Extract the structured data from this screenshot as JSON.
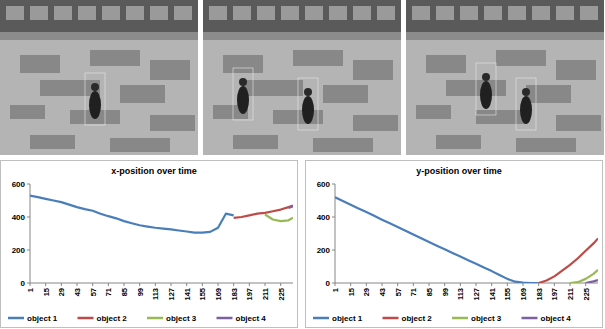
{
  "chart_data": [
    {
      "type": "line",
      "title": "x-position over time",
      "x": [
        1,
        8,
        15,
        22,
        29,
        36,
        43,
        50,
        57,
        64,
        71,
        78,
        85,
        92,
        99,
        106,
        113,
        120,
        127,
        134,
        141,
        148,
        155,
        162,
        169,
        176,
        183,
        190,
        197,
        204,
        211,
        218,
        225,
        232,
        236
      ],
      "xlim": [
        1,
        236
      ],
      "xticks": [
        1,
        15,
        29,
        43,
        57,
        71,
        85,
        99,
        113,
        127,
        141,
        155,
        169,
        183,
        197,
        211,
        225
      ],
      "ylim": [
        0,
        600
      ],
      "yticks": [
        0,
        200,
        400,
        600
      ],
      "grid": false,
      "legend": "bottom",
      "series": [
        {
          "name": "object 1",
          "color": "#4a7ebb",
          "values": [
            530,
            520,
            510,
            500,
            490,
            475,
            460,
            448,
            438,
            420,
            405,
            392,
            375,
            362,
            350,
            342,
            335,
            330,
            325,
            318,
            312,
            305,
            305,
            310,
            335,
            420,
            410,
            null,
            null,
            null,
            null,
            null,
            null,
            null,
            null
          ]
        },
        {
          "name": "object 2",
          "color": "#be4b48",
          "values": [
            null,
            null,
            null,
            null,
            null,
            null,
            null,
            null,
            null,
            null,
            null,
            null,
            null,
            null,
            null,
            null,
            null,
            null,
            null,
            null,
            null,
            null,
            null,
            null,
            null,
            null,
            395,
            400,
            410,
            420,
            425,
            435,
            445,
            460,
            470
          ]
        },
        {
          "name": "object 3",
          "color": "#98b954",
          "values": [
            null,
            null,
            null,
            null,
            null,
            null,
            null,
            null,
            null,
            null,
            null,
            null,
            null,
            null,
            null,
            null,
            null,
            null,
            null,
            null,
            null,
            null,
            null,
            null,
            null,
            null,
            null,
            null,
            null,
            null,
            415,
            385,
            375,
            380,
            395
          ]
        },
        {
          "name": "object 4",
          "color": "#7d60a0",
          "values": [
            null,
            null,
            null,
            null,
            null,
            null,
            null,
            null,
            null,
            null,
            null,
            null,
            null,
            null,
            null,
            null,
            null,
            null,
            null,
            null,
            null,
            null,
            null,
            null,
            null,
            null,
            null,
            null,
            null,
            null,
            null,
            null,
            null,
            455,
            465
          ]
        }
      ]
    },
    {
      "type": "line",
      "title": "y-position over time",
      "x": [
        1,
        8,
        15,
        22,
        29,
        36,
        43,
        50,
        57,
        64,
        71,
        78,
        85,
        92,
        99,
        106,
        113,
        120,
        127,
        134,
        141,
        148,
        155,
        162,
        169,
        176,
        183,
        190,
        197,
        204,
        211,
        218,
        225,
        232,
        236
      ],
      "xlim": [
        1,
        236
      ],
      "xticks": [
        1,
        15,
        29,
        43,
        57,
        71,
        85,
        99,
        113,
        127,
        141,
        155,
        169,
        183,
        197,
        211,
        225
      ],
      "ylim": [
        0,
        600
      ],
      "yticks": [
        0,
        200,
        400,
        600
      ],
      "grid": false,
      "legend": "bottom",
      "series": [
        {
          "name": "object 1",
          "color": "#4a7ebb",
          "values": [
            520,
            497,
            474,
            452,
            430,
            407,
            384,
            362,
            340,
            317,
            294,
            271,
            248,
            226,
            204,
            182,
            160,
            138,
            116,
            94,
            72,
            48,
            25,
            8,
            2,
            0,
            0,
            null,
            null,
            null,
            null,
            null,
            null,
            null,
            null
          ]
        },
        {
          "name": "object 2",
          "color": "#be4b48",
          "values": [
            null,
            null,
            null,
            null,
            null,
            null,
            null,
            null,
            null,
            null,
            null,
            null,
            null,
            null,
            null,
            null,
            null,
            null,
            null,
            null,
            null,
            null,
            null,
            null,
            null,
            null,
            0,
            15,
            40,
            75,
            110,
            150,
            195,
            240,
            270
          ]
        },
        {
          "name": "object 3",
          "color": "#98b954",
          "values": [
            null,
            null,
            null,
            null,
            null,
            null,
            null,
            null,
            null,
            null,
            null,
            null,
            null,
            null,
            null,
            null,
            null,
            null,
            null,
            null,
            null,
            null,
            null,
            null,
            null,
            null,
            null,
            null,
            null,
            null,
            0,
            5,
            25,
            55,
            80
          ]
        },
        {
          "name": "object 4",
          "color": "#7d60a0",
          "values": [
            null,
            null,
            null,
            null,
            null,
            null,
            null,
            null,
            null,
            null,
            null,
            null,
            null,
            null,
            null,
            null,
            null,
            null,
            null,
            null,
            null,
            null,
            null,
            null,
            null,
            null,
            null,
            null,
            null,
            null,
            null,
            null,
            0,
            10,
            18
          ]
        }
      ]
    }
  ]
}
